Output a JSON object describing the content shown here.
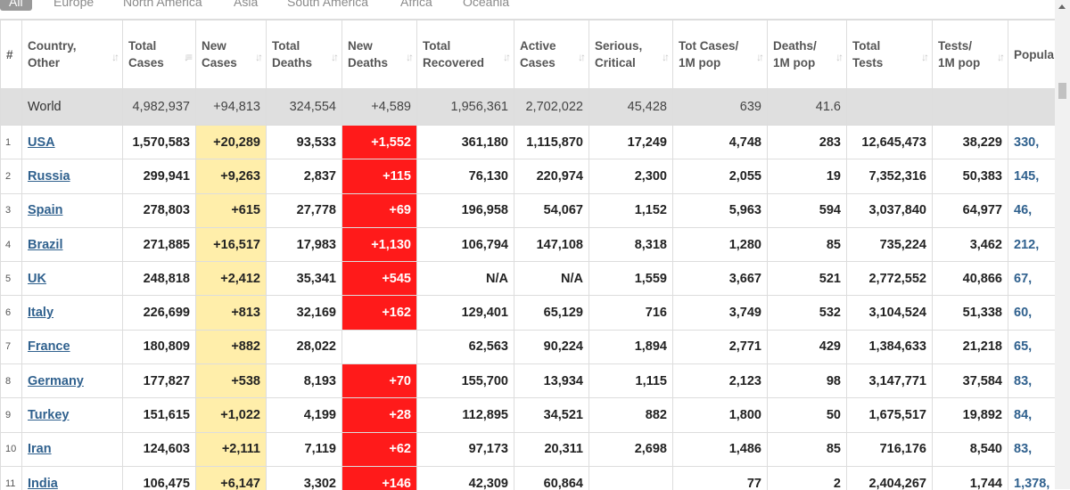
{
  "tabs": [
    "All",
    "Europe",
    "North America",
    "Asia",
    "South America",
    "Africa",
    "Oceania"
  ],
  "columns": [
    {
      "line1": "#",
      "line2": ""
    },
    {
      "line1": "Country,",
      "line2": "Other"
    },
    {
      "line1": "Total",
      "line2": "Cases"
    },
    {
      "line1": "New",
      "line2": "Cases"
    },
    {
      "line1": "Total",
      "line2": "Deaths"
    },
    {
      "line1": "New",
      "line2": "Deaths"
    },
    {
      "line1": "Total",
      "line2": "Recovered"
    },
    {
      "line1": "Active",
      "line2": "Cases"
    },
    {
      "line1": "Serious,",
      "line2": "Critical"
    },
    {
      "line1": "Tot Cases/",
      "line2": "1M pop"
    },
    {
      "line1": "Deaths/",
      "line2": "1M pop"
    },
    {
      "line1": "Total",
      "line2": "Tests"
    },
    {
      "line1": "Tests/",
      "line2": "1M pop"
    },
    {
      "line1": "Popula",
      "line2": ""
    }
  ],
  "world": [
    "",
    "World",
    "4,982,937",
    "+94,813",
    "324,554",
    "+4,589",
    "1,956,361",
    "2,702,022",
    "45,428",
    "639",
    "41.6",
    "",
    "",
    ""
  ],
  "rows": [
    [
      "1",
      "USA",
      "1,570,583",
      "+20,289",
      "93,533",
      "+1,552",
      "361,180",
      "1,115,870",
      "17,249",
      "4,748",
      "283",
      "12,645,473",
      "38,229",
      "330,"
    ],
    [
      "2",
      "Russia",
      "299,941",
      "+9,263",
      "2,837",
      "+115",
      "76,130",
      "220,974",
      "2,300",
      "2,055",
      "19",
      "7,352,316",
      "50,383",
      "145,"
    ],
    [
      "3",
      "Spain",
      "278,803",
      "+615",
      "27,778",
      "+69",
      "196,958",
      "54,067",
      "1,152",
      "5,963",
      "594",
      "3,037,840",
      "64,977",
      "46,"
    ],
    [
      "4",
      "Brazil",
      "271,885",
      "+16,517",
      "17,983",
      "+1,130",
      "106,794",
      "147,108",
      "8,318",
      "1,280",
      "85",
      "735,224",
      "3,462",
      "212,"
    ],
    [
      "5",
      "UK",
      "248,818",
      "+2,412",
      "35,341",
      "+545",
      "N/A",
      "N/A",
      "1,559",
      "3,667",
      "521",
      "2,772,552",
      "40,866",
      "67,"
    ],
    [
      "6",
      "Italy",
      "226,699",
      "+813",
      "32,169",
      "+162",
      "129,401",
      "65,129",
      "716",
      "3,749",
      "532",
      "3,104,524",
      "51,338",
      "60,"
    ],
    [
      "7",
      "France",
      "180,809",
      "+882",
      "28,022",
      "",
      "62,563",
      "90,224",
      "1,894",
      "2,771",
      "429",
      "1,384,633",
      "21,218",
      "65,"
    ],
    [
      "8",
      "Germany",
      "177,827",
      "+538",
      "8,193",
      "+70",
      "155,700",
      "13,934",
      "1,115",
      "2,123",
      "98",
      "3,147,771",
      "37,584",
      "83,"
    ],
    [
      "9",
      "Turkey",
      "151,615",
      "+1,022",
      "4,199",
      "+28",
      "112,895",
      "34,521",
      "882",
      "1,800",
      "50",
      "1,675,517",
      "19,892",
      "84,"
    ],
    [
      "10",
      "Iran",
      "124,603",
      "+2,111",
      "7,119",
      "+62",
      "97,173",
      "20,311",
      "2,698",
      "1,486",
      "85",
      "716,176",
      "8,540",
      "83,"
    ],
    [
      "11",
      "India",
      "106,475",
      "+6,147",
      "3,302",
      "+146",
      "42,309",
      "60,864",
      "",
      "77",
      "2",
      "2,404,267",
      "1,744",
      "1,378,"
    ]
  ],
  "colors": {
    "new_cases_bg": "#ffeeaa",
    "new_deaths_bg": "#ff1a1a",
    "link": "#30618e",
    "world_bg": "#dfdfdf"
  }
}
